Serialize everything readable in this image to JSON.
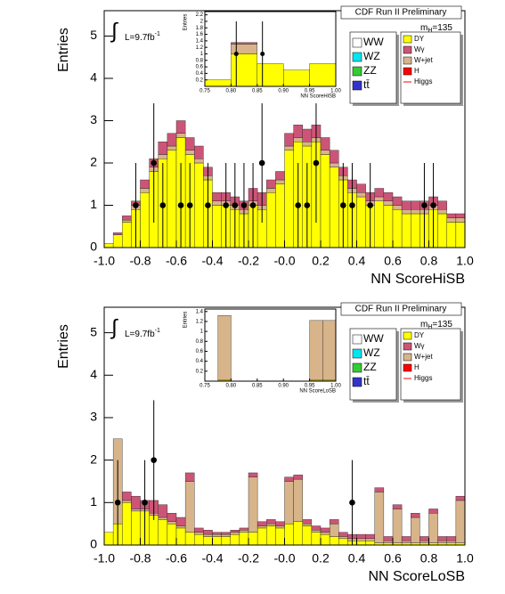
{
  "chart_data": [
    {
      "type": "histogram",
      "x_label": "NN ScoreHiSB",
      "y_label": "Entries",
      "bins": [
        -1,
        -0.95,
        -0.9,
        -0.85,
        -0.8,
        -0.75,
        -0.7,
        -0.65,
        -0.6,
        -0.55,
        -0.5,
        -0.45,
        -0.4,
        -0.35,
        -0.3,
        -0.25,
        -0.2,
        -0.15,
        -0.1,
        -0.05,
        0,
        0.05,
        0.1,
        0.15,
        0.2,
        0.25,
        0.3,
        0.35,
        0.4,
        0.45,
        0.5,
        0.55,
        0.6,
        0.65,
        0.7,
        0.75,
        0.8,
        0.85,
        0.9,
        0.95,
        1
      ],
      "series": [
        {
          "name": "DY",
          "color": "#ffff00",
          "values": [
            0.1,
            0.3,
            0.6,
            0.9,
            1.3,
            1.8,
            2.1,
            2.3,
            2.6,
            2.2,
            2.0,
            1.6,
            1.0,
            1.0,
            0.9,
            0.8,
            1.0,
            0.9,
            1.3,
            1.5,
            2.3,
            2.5,
            2.4,
            2.5,
            2.2,
            1.9,
            1.6,
            1.3,
            1.2,
            1.0,
            1.1,
            1.0,
            0.9,
            0.8,
            0.8,
            0.8,
            0.9,
            0.8,
            0.6,
            0.6
          ]
        },
        {
          "name": "Wγ",
          "color": "#cc5577",
          "values": [
            0,
            0.05,
            0.1,
            0.1,
            0.2,
            0.2,
            0.3,
            0.3,
            0.3,
            0.3,
            0.3,
            0.2,
            0.2,
            0.2,
            0.2,
            0.2,
            0.3,
            0.3,
            0.2,
            0.2,
            0.3,
            0.3,
            0.3,
            0.3,
            0.3,
            0.3,
            0.2,
            0.2,
            0.2,
            0.2,
            0.2,
            0.2,
            0.2,
            0.2,
            0.2,
            0.2,
            0.2,
            0.2,
            0.1,
            0.1
          ]
        },
        {
          "name": "W+jet",
          "color": "#d8b48a",
          "values": [
            0,
            0,
            0.05,
            0.1,
            0.1,
            0.1,
            0.1,
            0.1,
            0.1,
            0.1,
            0.1,
            0.1,
            0.1,
            0.1,
            0.1,
            0.1,
            0.1,
            0.1,
            0.1,
            0.1,
            0.1,
            0.1,
            0.1,
            0.1,
            0.1,
            0.1,
            0.1,
            0.1,
            0.1,
            0.1,
            0.1,
            0.1,
            0.1,
            0.1,
            0.1,
            0.1,
            0.1,
            0.1,
            0.1,
            0.1
          ]
        }
      ],
      "stack_order": [
        0,
        2,
        1
      ],
      "data_points": {
        "x": [
          -0.825,
          -0.725,
          -0.675,
          -0.575,
          -0.525,
          -0.425,
          -0.325,
          -0.275,
          -0.225,
          -0.175,
          -0.125,
          0.075,
          0.125,
          0.175,
          0.325,
          0.375,
          0.475,
          0.775,
          0.825
        ],
        "y": [
          1,
          2,
          1,
          1,
          1,
          1,
          1,
          1,
          1,
          1,
          2,
          1,
          1,
          2,
          1,
          1,
          1,
          1,
          1
        ],
        "yerr": [
          1,
          1.41,
          1,
          1,
          1,
          1,
          1,
          1,
          1,
          1,
          1.41,
          1,
          1,
          1.41,
          1,
          1,
          1,
          1,
          1
        ]
      },
      "xlim": [
        -1,
        1
      ],
      "ylim": [
        0,
        5.6
      ],
      "xticks": [
        {
          "value": -1,
          "label": "-1.0"
        },
        -0.8,
        -0.6,
        -0.4,
        -0.2,
        {
          "value": 0,
          "label": "-0.0"
        },
        0.2,
        0.4,
        0.6,
        0.8,
        {
          "value": 1,
          "label": "1.0"
        }
      ],
      "yticks": [
        0,
        1,
        2,
        3,
        4,
        5
      ],
      "legend_box1": [
        {
          "name": "WW",
          "color": "#ffffff"
        },
        {
          "name": "WZ",
          "color": "#00e5ee"
        },
        {
          "name": "ZZ",
          "color": "#33cc33"
        },
        {
          "name": "tt̄",
          "color": "#3333cc"
        }
      ],
      "legend_box2_extra": [
        {
          "name": "H",
          "color": "#ff0000"
        },
        {
          "name": "Higgs",
          "color": "#ff0000"
        }
      ],
      "header": "CDF Run II Preliminary",
      "mass_label": "m",
      "mass_sub": "H",
      "mass_rest": "=135",
      "integral_symbol": "∫",
      "luminosity": "L=9.7fb",
      "luminosity_sup": "-1"
    },
    {
      "type": "histogram",
      "x_label": "NN ScoreHiSB",
      "y_label": "Entries",
      "bins": [
        0.75,
        0.8,
        0.85,
        0.9,
        0.95,
        1
      ],
      "series": [
        {
          "color": "#ffff00",
          "values": [
            0.2,
            1.0,
            0.7,
            0.5,
            0.7
          ]
        },
        {
          "color": "#cc5577",
          "values": [
            0,
            0.05,
            0,
            0,
            0
          ]
        },
        {
          "color": "#d8b48a",
          "values": [
            0,
            0.3,
            0,
            0,
            0
          ]
        }
      ],
      "stack_order": [
        0,
        2,
        1
      ],
      "data_points": {
        "x": [
          0.81,
          0.86
        ],
        "y": [
          1,
          1
        ],
        "yerr": [
          1,
          1
        ]
      },
      "xlim": [
        0.75,
        1
      ],
      "ylim": [
        0,
        2.3
      ],
      "xticks": [
        0.75,
        {
          "value": 0.8,
          "label": "0.80"
        },
        0.85,
        {
          "value": 0.9,
          "label": "0.90"
        },
        0.95,
        {
          "value": 1,
          "label": "1.00"
        }
      ],
      "yticks": [
        0.2,
        0.4,
        0.6,
        0.8,
        1,
        1.2,
        1.4,
        1.6,
        1.8,
        2,
        2.2
      ]
    },
    {
      "type": "histogram",
      "x_label": "NN ScoreLoSB",
      "y_label": "Entries",
      "bins": [
        -1,
        -0.95,
        -0.9,
        -0.85,
        -0.8,
        -0.75,
        -0.7,
        -0.65,
        -0.6,
        -0.55,
        -0.5,
        -0.45,
        -0.4,
        -0.35,
        -0.3,
        -0.25,
        -0.2,
        -0.15,
        -0.1,
        -0.05,
        0,
        0.05,
        0.1,
        0.15,
        0.2,
        0.25,
        0.3,
        0.35,
        0.4,
        0.45,
        0.5,
        0.55,
        0.6,
        0.65,
        0.7,
        0.75,
        0.8,
        0.85,
        0.9,
        0.95,
        1
      ],
      "series": [
        {
          "name": "DY",
          "color": "#ffff00",
          "values": [
            0.3,
            0.5,
            1.0,
            0.8,
            0.8,
            0.7,
            0.6,
            0.5,
            0.4,
            0.3,
            0.25,
            0.2,
            0.2,
            0.2,
            0.25,
            0.3,
            0.3,
            0.4,
            0.45,
            0.4,
            0.5,
            0.55,
            0.45,
            0.3,
            0.25,
            0.2,
            0.15,
            0.1,
            0.1,
            0.1,
            0.05,
            0.05,
            0.05,
            0.05,
            0.05,
            0.05,
            0.05,
            0.05,
            0.05,
            0.05
          ]
        },
        {
          "name": "Wγ",
          "color": "#cc5577",
          "values": [
            0,
            0,
            0.2,
            0.3,
            0.2,
            0.3,
            0.3,
            0.2,
            0.2,
            0.2,
            0.1,
            0.1,
            0.05,
            0.05,
            0.05,
            0.05,
            0.1,
            0.1,
            0.1,
            0.1,
            0.1,
            0.1,
            0.1,
            0.1,
            0.1,
            0.1,
            0.1,
            0.1,
            0.1,
            0.1,
            0.1,
            0.1,
            0.1,
            0.1,
            0.1,
            0.1,
            0.1,
            0.1,
            0.1,
            0.1
          ]
        },
        {
          "name": "W+jet",
          "color": "#d8b48a",
          "values": [
            0,
            2.0,
            0.05,
            0.05,
            0.05,
            0.05,
            0.05,
            0.05,
            0.05,
            1.2,
            0.05,
            0.05,
            0.05,
            0.05,
            0.05,
            0.05,
            1.3,
            0.05,
            0.05,
            0.05,
            1.0,
            1.0,
            0.05,
            0.05,
            0.05,
            0.3,
            0.05,
            0.05,
            0.05,
            0.05,
            1.2,
            0.05,
            0.8,
            0.05,
            0.6,
            0.05,
            0.7,
            0.05,
            0.05,
            1.0
          ]
        }
      ],
      "stack_order": [
        0,
        2,
        1
      ],
      "data_points": {
        "x": [
          -0.925,
          -0.775,
          -0.725,
          0.375
        ],
        "y": [
          1,
          1,
          2,
          1
        ],
        "yerr": [
          1,
          1,
          1.41,
          1
        ]
      },
      "xlim": [
        -1,
        1
      ],
      "ylim": [
        0,
        5.6
      ],
      "xticks": [
        {
          "value": -1,
          "label": "-1.0"
        },
        -0.8,
        -0.6,
        -0.4,
        -0.2,
        {
          "value": 0,
          "label": "-0.0"
        },
        0.2,
        0.4,
        0.6,
        0.8,
        {
          "value": 1,
          "label": "1.0"
        }
      ],
      "yticks": [
        0,
        1,
        2,
        3,
        4,
        5
      ],
      "legend_box1": [
        {
          "name": "WW",
          "color": "#ffffff"
        },
        {
          "name": "WZ",
          "color": "#00e5ee"
        },
        {
          "name": "ZZ",
          "color": "#33cc33"
        },
        {
          "name": "tt̄",
          "color": "#3333cc"
        }
      ],
      "legend_box2_extra": [
        {
          "name": "H",
          "color": "#ff0000"
        },
        {
          "name": "Higgs",
          "color": "#ff0000"
        }
      ],
      "header": "CDF Run II Preliminary",
      "mass_label": "m",
      "mass_sub": "H",
      "mass_rest": "=135",
      "integral_symbol": "∫",
      "luminosity": "L=9.7fb",
      "luminosity_sup": "-1"
    },
    {
      "type": "histogram",
      "x_label": "NN ScoreLoSB",
      "y_label": "Entries",
      "bins": [
        0.75,
        0.775,
        0.8,
        0.825,
        0.85,
        0.875,
        0.9,
        0.925,
        0.95,
        0.975,
        1
      ],
      "series": [
        {
          "color": "#ffff00",
          "values": [
            0,
            0.02,
            0,
            0,
            0,
            0,
            0,
            0,
            0.02,
            0.02
          ]
        },
        {
          "color": "#cc5577",
          "values": [
            0,
            0,
            0,
            0,
            0,
            0,
            0,
            0,
            0,
            0
          ]
        },
        {
          "color": "#d8b48a",
          "values": [
            0,
            1.3,
            0,
            0,
            0,
            0,
            0,
            0,
            1.2,
            1.2
          ]
        }
      ],
      "stack_order": [
        0,
        2,
        1
      ],
      "xlim": [
        0.75,
        1
      ],
      "ylim": [
        0,
        1.45
      ],
      "xticks": [
        0.75,
        {
          "value": 0.8,
          "label": "0.80"
        },
        0.85,
        {
          "value": 0.9,
          "label": "0.90"
        },
        0.95,
        {
          "value": 1,
          "label": "1.00"
        }
      ],
      "yticks": [
        0.2,
        0.4,
        0.6,
        0.8,
        1,
        1.2,
        1.4
      ]
    }
  ]
}
